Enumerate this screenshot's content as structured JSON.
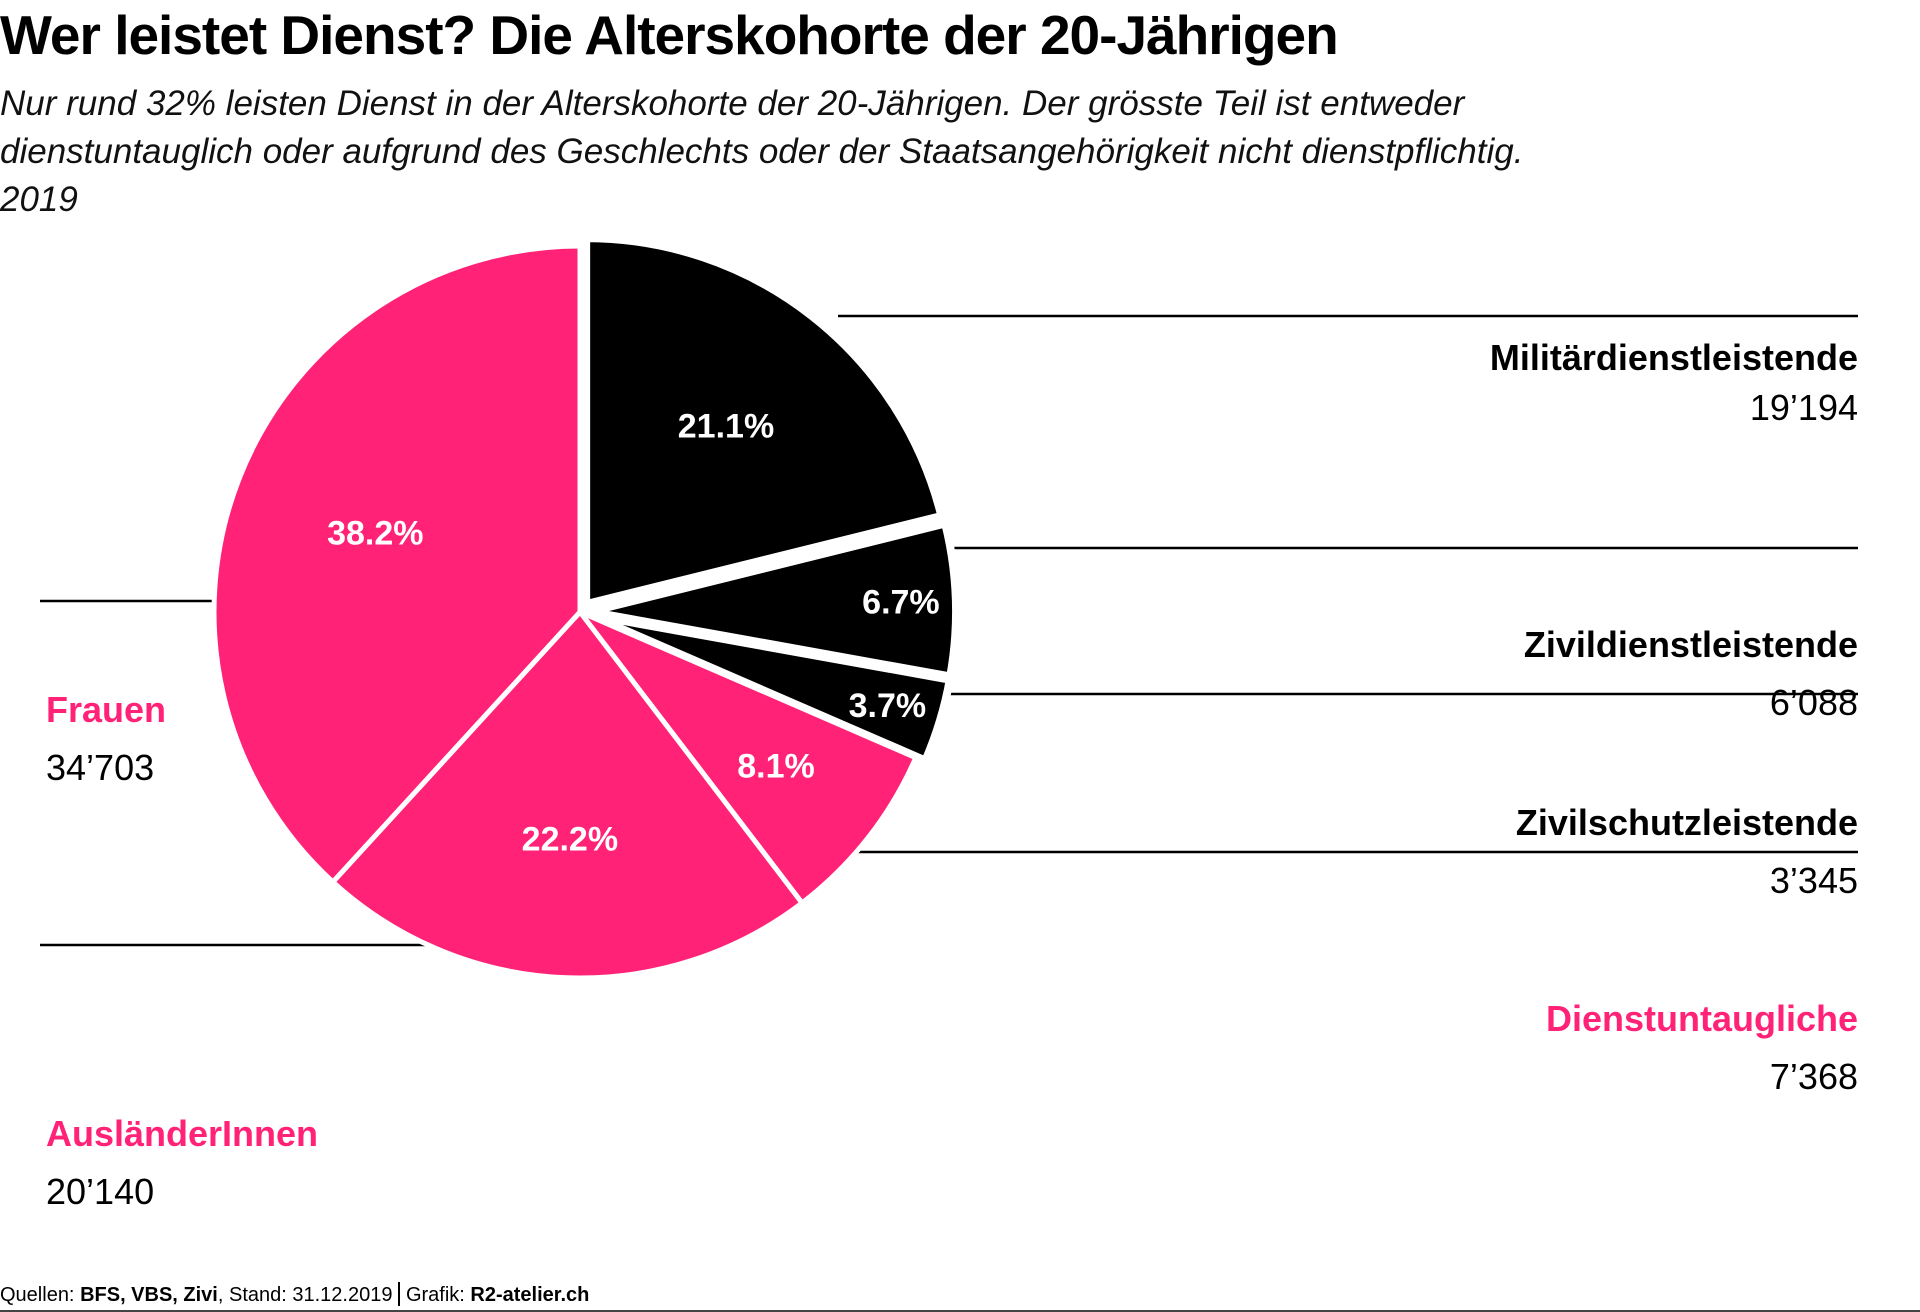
{
  "header": {
    "title": "Wer leistet Dienst? Die Alterskohorte der 20-Jährigen",
    "subtitle_lines": [
      "Nur rund 32% leisten Dienst in der Alterskohorte der 20-Jährigen. Der grösste Teil ist entweder",
      "dienstuntauglich oder aufgrund des Geschlechts oder der Staatsangehörigkeit nicht dienstpflichtig.",
      "2019"
    ]
  },
  "colors": {
    "service": "#000000",
    "non_service": "#ff2277",
    "separator": "#ffffff",
    "leader_line": "#000000"
  },
  "chart_data": {
    "type": "pie",
    "title": "Wer leistet Dienst? Die Alterskohorte der 20-Jährigen",
    "subtitle": "Nur rund 32% leisten Dienst in der Alterskohorte der 20-Jährigen. Der grösste Teil ist entweder dienstuntauglich oder aufgrund des Geschlechts oder der Staatsangehörigkeit nicht dienstpflichtig. 2019",
    "start": "12 o'clock, clockwise",
    "slices": [
      {
        "name": "Militärdienstleistende",
        "value": 19194,
        "value_label": "19’194",
        "percent": 21.1,
        "percent_label": "21.1%",
        "color": "#000000",
        "exploded": true,
        "label_side": "right"
      },
      {
        "name": "Zivildienstleistende",
        "value": 6088,
        "value_label": "6’088",
        "percent": 6.7,
        "percent_label": "6.7%",
        "color": "#000000",
        "exploded": true,
        "label_side": "right"
      },
      {
        "name": "Zivilschutzleistende",
        "value": 3345,
        "value_label": "3’345",
        "percent": 3.7,
        "percent_label": "3.7%",
        "color": "#000000",
        "exploded": true,
        "label_side": "right"
      },
      {
        "name": "Dienstuntaugliche",
        "value": 7368,
        "value_label": "7’368",
        "percent": 8.1,
        "percent_label": "8.1%",
        "color": "#ff2277",
        "exploded": false,
        "label_side": "right"
      },
      {
        "name": "AusländerInnen",
        "value": 20140,
        "value_label": "20’140",
        "percent": 22.2,
        "percent_label": "22.2%",
        "color": "#ff2277",
        "exploded": false,
        "label_side": "left"
      },
      {
        "name": "Frauen",
        "value": 34703,
        "value_label": "34’703",
        "percent": 38.2,
        "percent_label": "38.2%",
        "color": "#ff2277",
        "exploded": false,
        "label_side": "left"
      }
    ]
  },
  "footer": {
    "sources_prefix": "Quellen: ",
    "sources": "BFS, VBS, Zivi",
    "stand": ", Stand: 31.12.2019",
    "grafik_prefix": "Grafik: ",
    "grafik": "R2-atelier.ch"
  }
}
